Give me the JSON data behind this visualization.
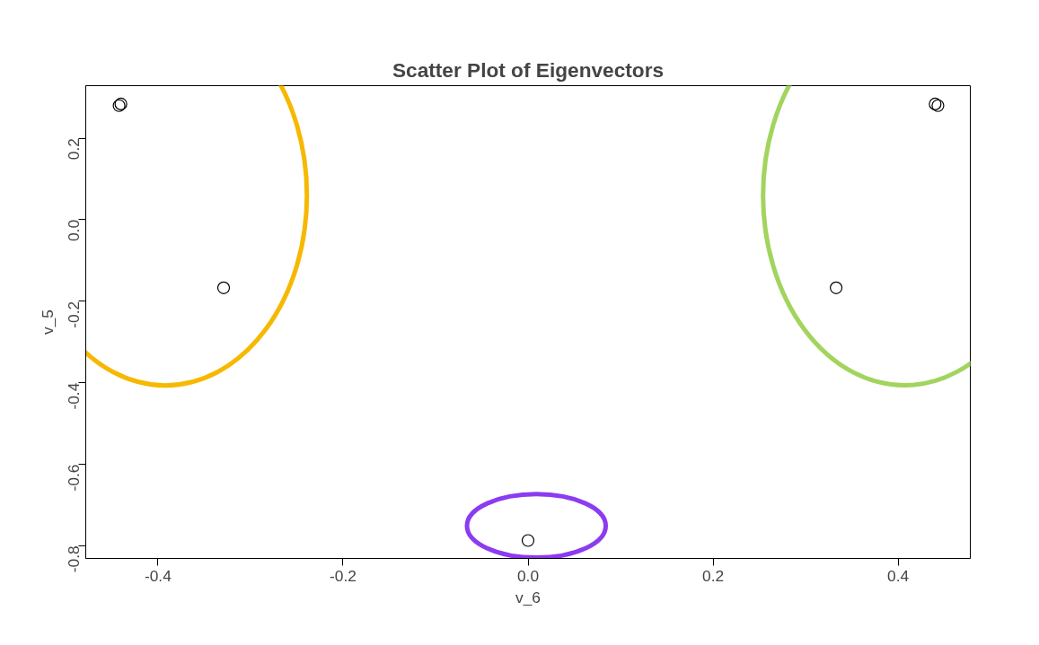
{
  "chart_data": {
    "type": "scatter",
    "title": "Scatter Plot of Eigenvectors",
    "xlabel": "v_6",
    "ylabel": "v_5",
    "x": [
      -0.44,
      -0.442,
      -0.329,
      0.0,
      0.333,
      0.44,
      0.443
    ],
    "series": [
      {
        "color": "#000000",
        "values": [
          0.284,
          0.28,
          -0.167,
          -0.787,
          -0.167,
          0.284,
          0.28
        ]
      }
    ],
    "xlim": [
      -0.478,
      0.478
    ],
    "ylim": [
      -0.831,
      0.329
    ],
    "xticks": [
      {
        "value": -0.4,
        "label": "-0.4"
      },
      {
        "value": -0.2,
        "label": "-0.2"
      },
      {
        "value": 0,
        "label": "0.0"
      },
      {
        "value": 0.2,
        "label": "0.2"
      },
      {
        "value": 0.4,
        "label": "0.4"
      }
    ],
    "yticks": [
      {
        "value": -0.8,
        "label": "-0.8"
      },
      {
        "value": -0.6,
        "label": "-0.6"
      },
      {
        "value": -0.4,
        "label": "-0.4"
      },
      {
        "value": -0.2,
        "label": "-0.2"
      },
      {
        "value": 0,
        "label": "0.0"
      },
      {
        "value": 0.2,
        "label": "0.2"
      }
    ],
    "marker": "circle",
    "grid": false
  }
}
